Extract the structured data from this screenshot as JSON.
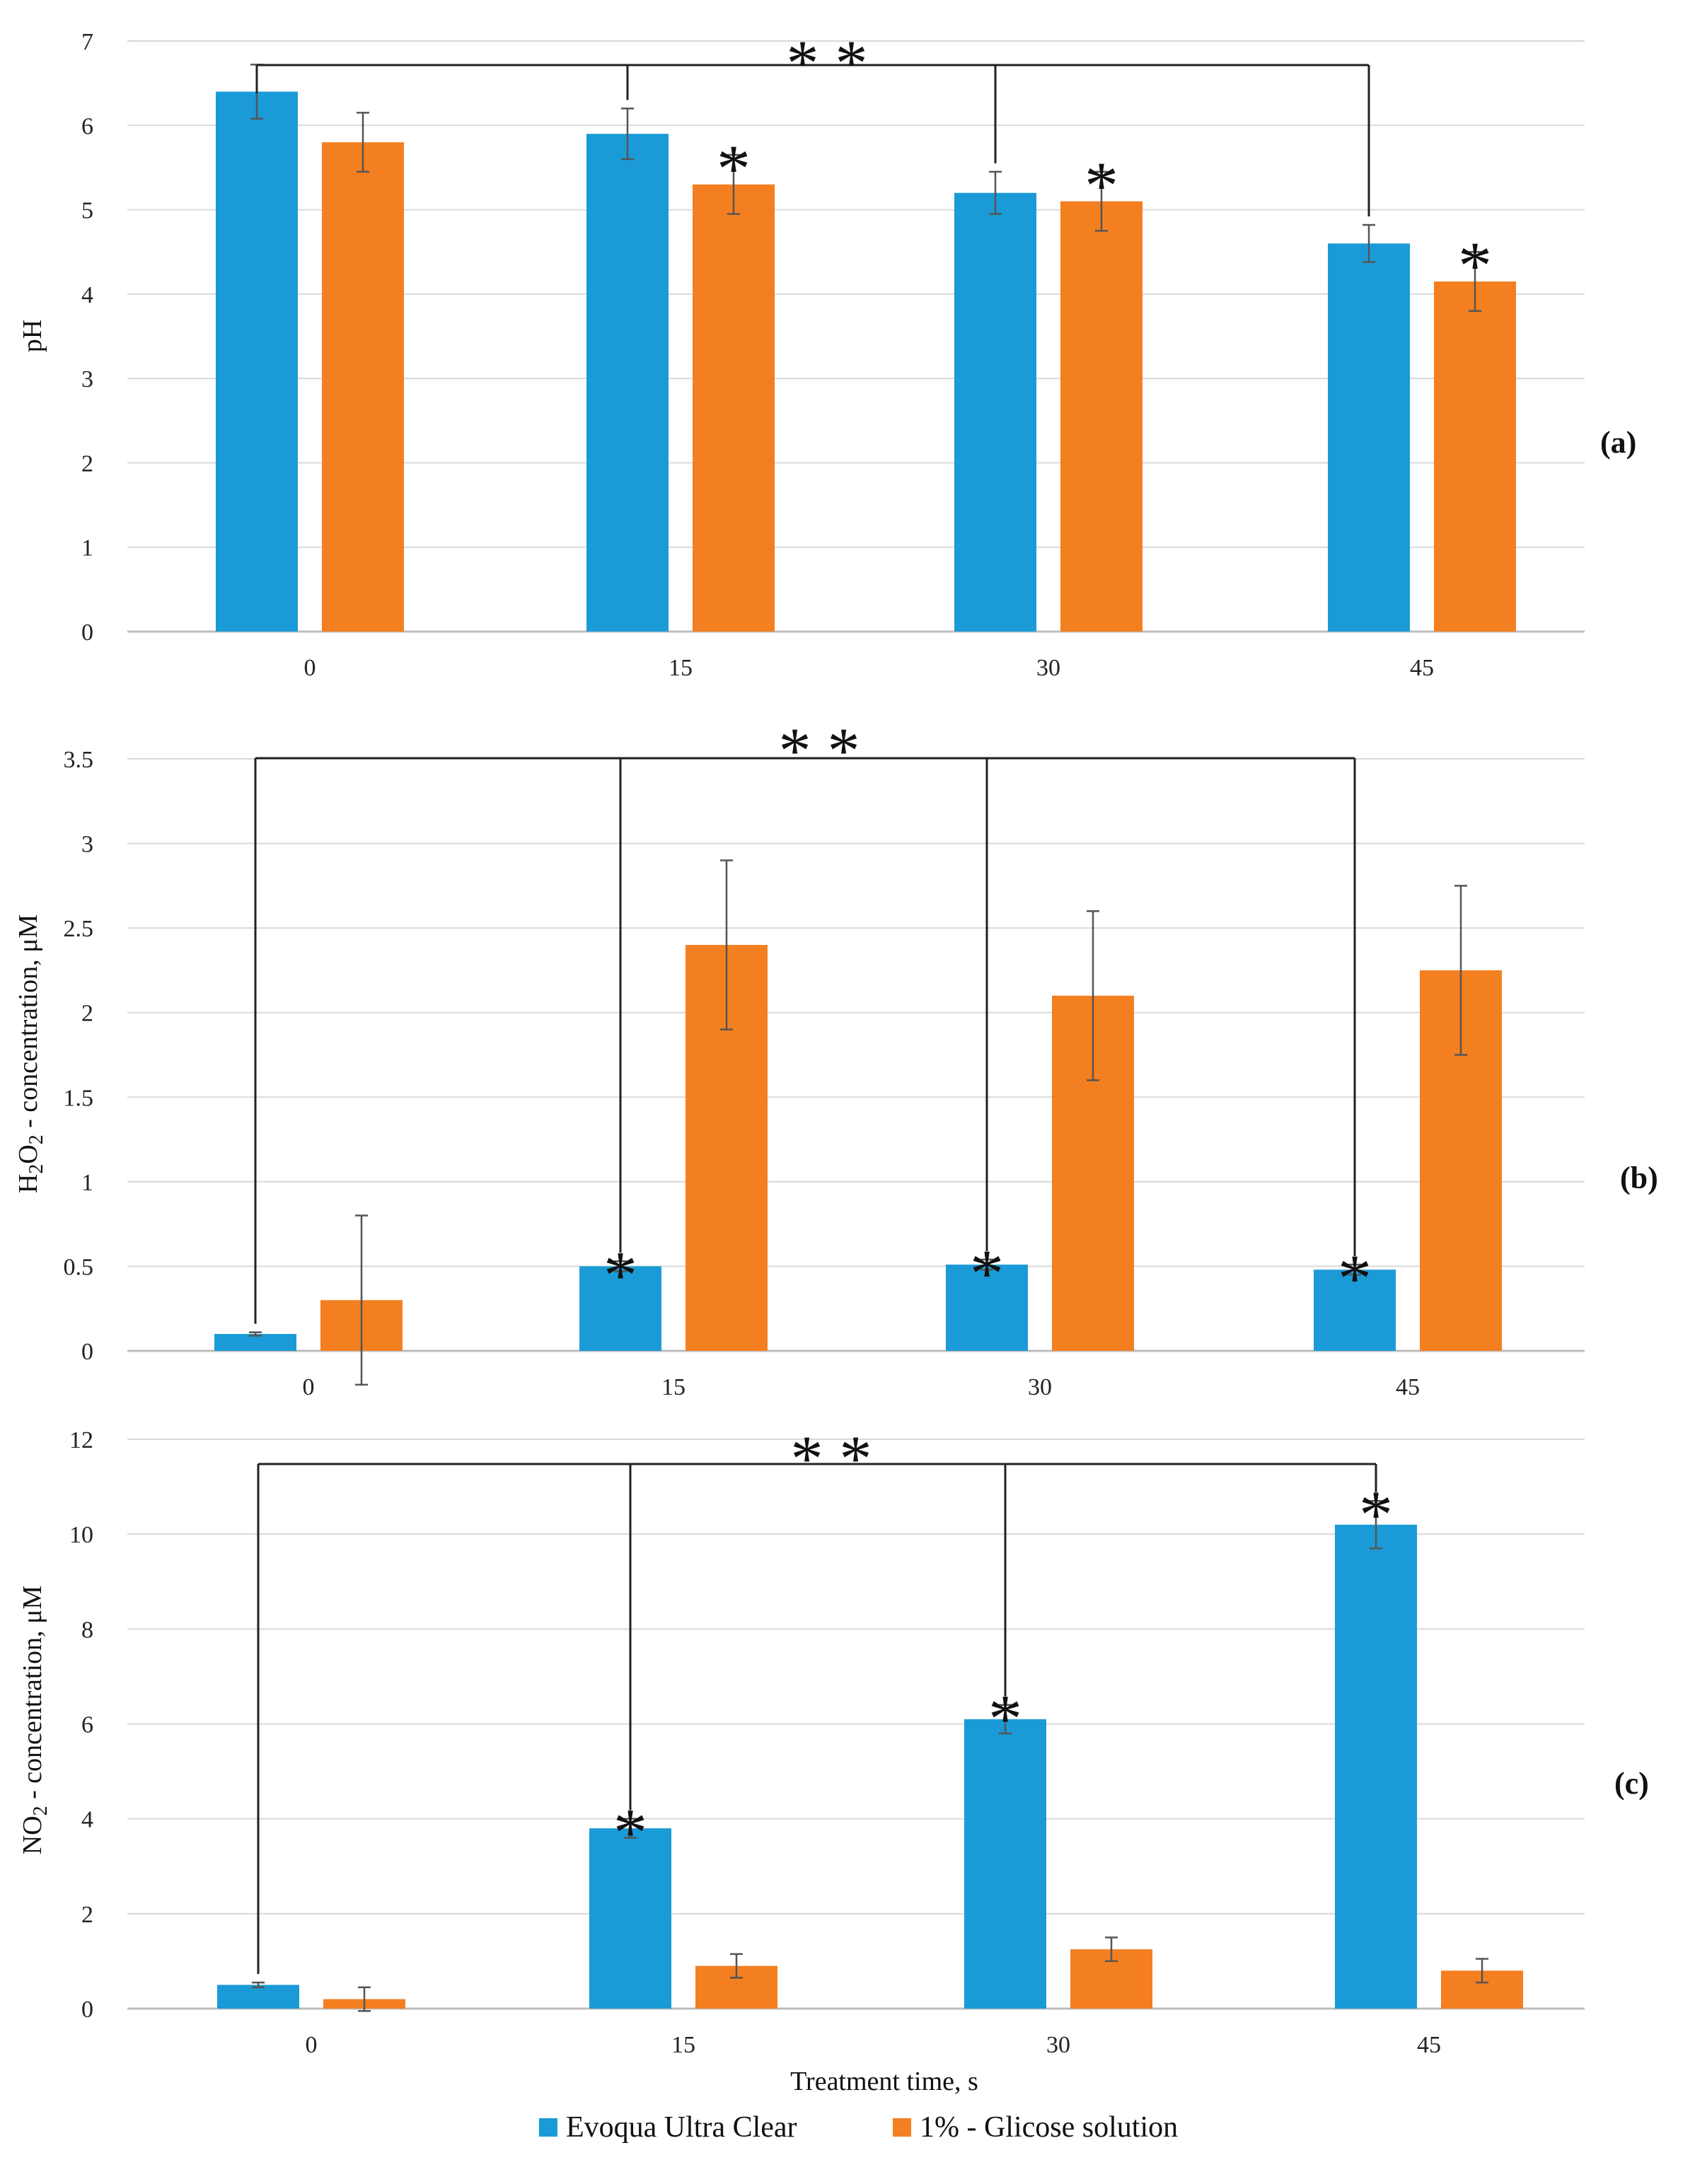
{
  "figure": {
    "xlabel": "Treatment time, s",
    "legend": [
      {
        "name": "Evoqua Ultra Clear",
        "color": "#1a9bd7"
      },
      {
        "name": "1% - Glicose solution",
        "color": "#f47f20"
      }
    ]
  },
  "chart_data": [
    {
      "type": "bar",
      "panel": "(a)",
      "title": "",
      "xlabel": "",
      "ylabel": "pH",
      "ylim": [
        0,
        7
      ],
      "yticks": [
        "0",
        "1",
        "2",
        "3",
        "4",
        "5",
        "6",
        "7"
      ],
      "categories": [
        "0",
        "15",
        "30",
        "45"
      ],
      "series": [
        {
          "name": "Evoqua Ultra Clear",
          "color": "#1a9bd7",
          "values": [
            6.4,
            5.9,
            5.2,
            4.6
          ],
          "errors": [
            0.32,
            0.3,
            0.25,
            0.22
          ],
          "significance": [
            "",
            "",
            "",
            ""
          ]
        },
        {
          "name": "1% - Glicose solution",
          "color": "#f47f20",
          "values": [
            5.8,
            5.3,
            5.1,
            4.15
          ],
          "errors": [
            0.35,
            0.35,
            0.35,
            0.35
          ],
          "significance": [
            "",
            "*",
            "*",
            "*"
          ]
        }
      ],
      "bracket": {
        "label": "* *",
        "groups": [
          "0",
          "15",
          "30",
          "45"
        ],
        "series": 0
      }
    },
    {
      "type": "bar",
      "panel": "(b)",
      "title": "",
      "xlabel": "",
      "ylabel_parts": [
        "H",
        "2",
        "O",
        "2",
        " - concentration, μM"
      ],
      "ylim": [
        0,
        3.5
      ],
      "yticks": [
        "0",
        "0.5",
        "1",
        "1.5",
        "2",
        "2.5",
        "3",
        "3.5"
      ],
      "categories": [
        "0",
        "15",
        "30",
        "45"
      ],
      "series": [
        {
          "name": "Evoqua Ultra Clear",
          "color": "#1a9bd7",
          "values": [
            0.1,
            0.5,
            0.51,
            0.48
          ],
          "errors": [
            0.01,
            0.03,
            0.03,
            0.03
          ],
          "significance": [
            "",
            "*",
            "*",
            "*"
          ]
        },
        {
          "name": "1% - Glicose solution",
          "color": "#f47f20",
          "values": [
            0.3,
            2.4,
            2.1,
            2.25
          ],
          "errors": [
            0.5,
            0.5,
            0.5,
            0.5
          ],
          "significance": [
            "",
            "",
            "",
            ""
          ]
        }
      ],
      "bracket": {
        "label": "* *",
        "groups": [
          "0",
          "15",
          "30",
          "45"
        ],
        "series": 0
      }
    },
    {
      "type": "bar",
      "panel": "(c)",
      "title": "",
      "xlabel": "Treatment time, s",
      "ylabel_parts": [
        "NO",
        "2",
        " - concentration, μM"
      ],
      "ylim": [
        0,
        12
      ],
      "yticks": [
        "0",
        "2",
        "4",
        "6",
        "8",
        "10",
        "12"
      ],
      "categories": [
        "0",
        "15",
        "30",
        "45"
      ],
      "series": [
        {
          "name": "Evoqua Ultra Clear",
          "color": "#1a9bd7",
          "values": [
            0.5,
            3.8,
            6.1,
            10.2
          ],
          "errors": [
            0.05,
            0.2,
            0.3,
            0.5
          ],
          "significance": [
            "",
            "*",
            "*",
            "*"
          ]
        },
        {
          "name": "1% - Glicose solution",
          "color": "#f47f20",
          "values": [
            0.2,
            0.9,
            1.25,
            0.8
          ],
          "errors": [
            0.25,
            0.25,
            0.25,
            0.25
          ],
          "significance": [
            "",
            "",
            "",
            ""
          ]
        }
      ],
      "bracket": {
        "label": "* *",
        "groups": [
          "0",
          "15",
          "30",
          "45"
        ],
        "series": 0
      }
    }
  ]
}
